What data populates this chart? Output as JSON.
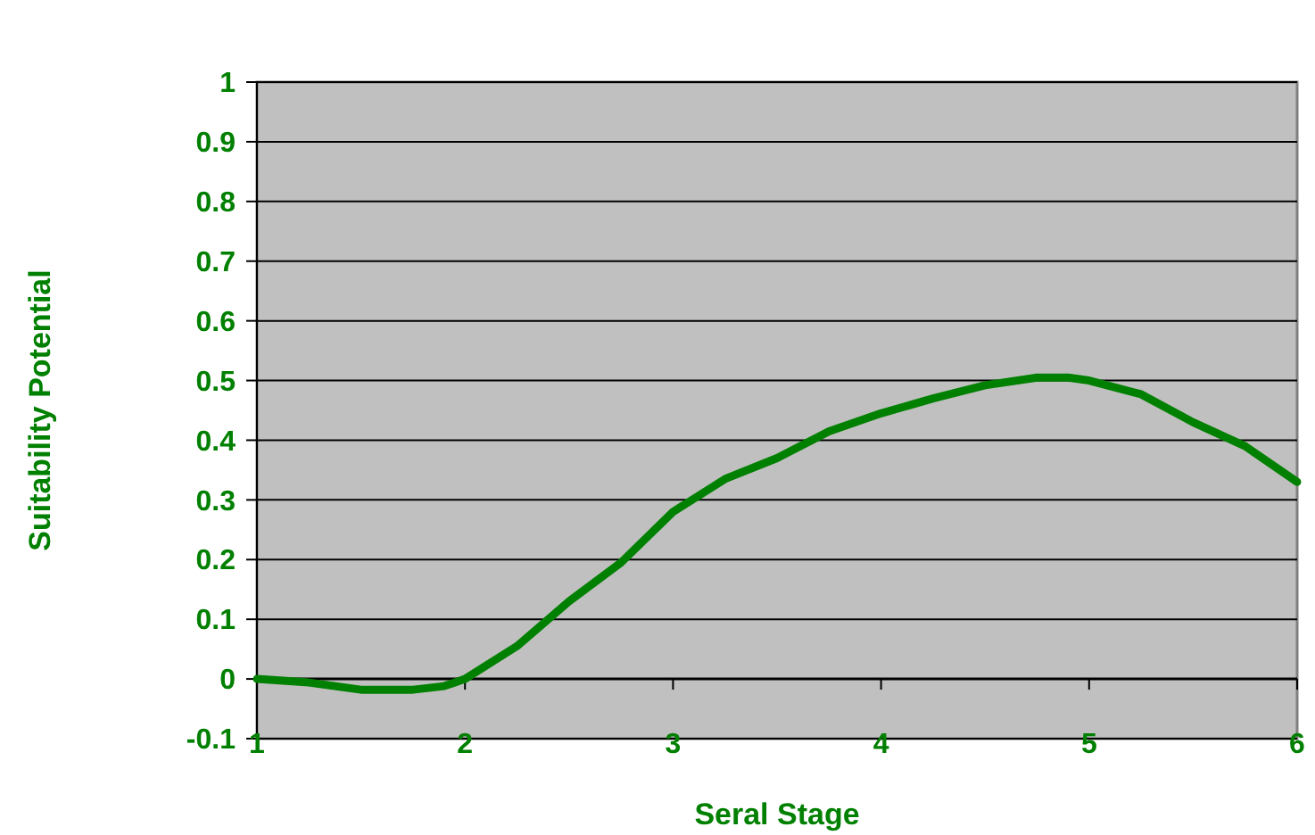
{
  "chart_data": {
    "type": "line",
    "xlabel": "Seral Stage",
    "ylabel": "Suitability Potential",
    "xlim": [
      1,
      6
    ],
    "xticks": [
      1,
      2,
      3,
      4,
      5,
      6
    ],
    "ylim": [
      -0.1,
      1
    ],
    "yticks": [
      -0.1,
      0,
      0.1,
      0.2,
      0.3,
      0.4,
      0.5,
      0.6,
      0.7,
      0.8,
      0.9,
      1
    ],
    "grid": "y",
    "marker": "none",
    "line_style": "solid",
    "series": [
      {
        "color": "#008000",
        "x": [
          1,
          1.25,
          1.5,
          1.75,
          1.9,
          2,
          2.25,
          2.5,
          2.75,
          3,
          3.25,
          3.5,
          3.75,
          4,
          4.25,
          4.5,
          4.75,
          4.9,
          5,
          5.25,
          5.5,
          5.75,
          6
        ],
        "values": [
          0,
          -0.006,
          -0.018,
          -0.018,
          -0.012,
          0,
          0.055,
          0.13,
          0.195,
          0.28,
          0.335,
          0.37,
          0.415,
          0.445,
          0.47,
          0.492,
          0.505,
          0.505,
          0.5,
          0.477,
          0.43,
          0.39,
          0.33
        ]
      }
    ]
  }
}
